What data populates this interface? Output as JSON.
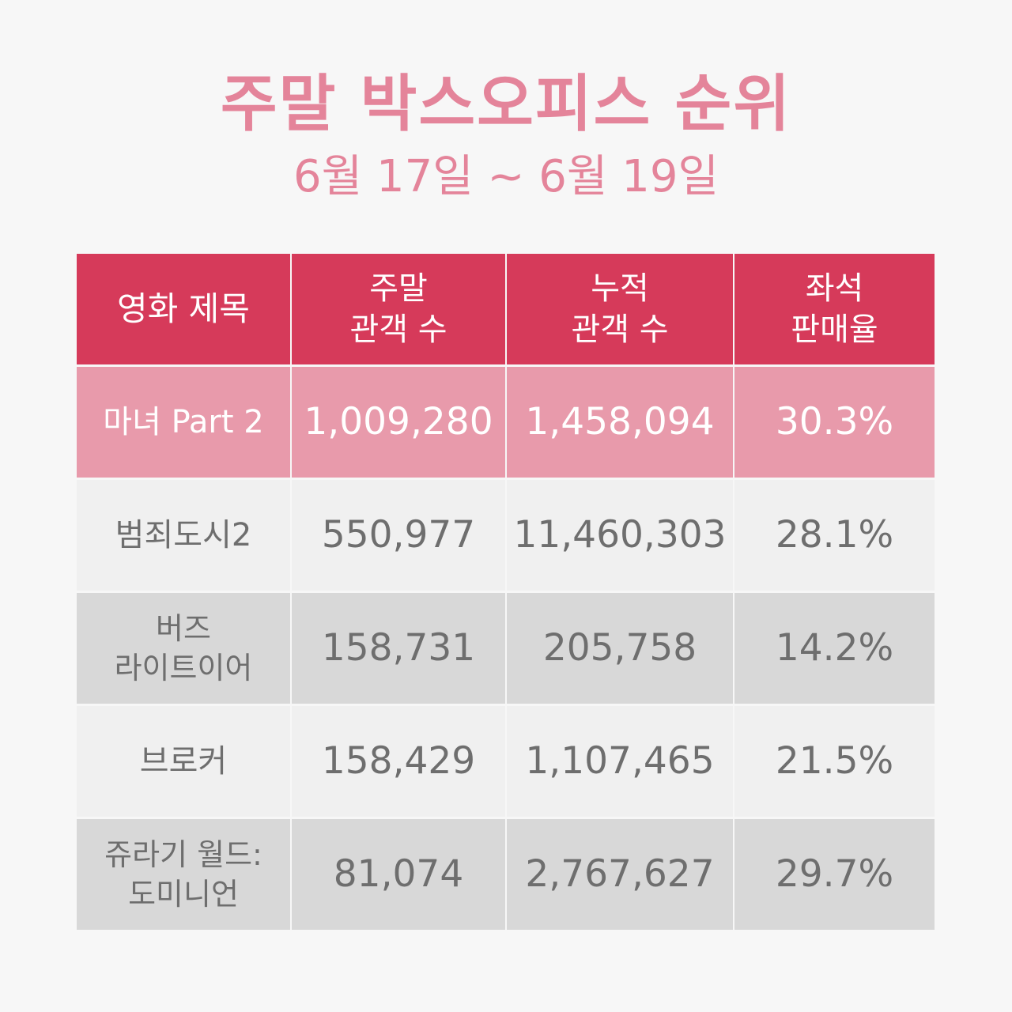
{
  "page": {
    "title": "주말 박스오피스 순위",
    "subtitle": "6월 17일 ~ 6월 19일"
  },
  "colors": {
    "title": "#e4849a",
    "header_bg": "#d63a5a",
    "header_text": "#ffffff",
    "highlight_bg": "#e89aab",
    "highlight_text": "#ffffff",
    "light_row_bg": "#f0f0f0",
    "dark_row_bg": "#d8d8d8",
    "row_text": "#6e6e6e",
    "page_bg": "#f7f7f7"
  },
  "table": {
    "headers": [
      "영화 제목",
      "주말\n관객 수",
      "누적\n관객 수",
      "좌석\n판매율"
    ],
    "rows": [
      {
        "title": "마녀 Part 2",
        "weekend_audience": "1,009,280",
        "total_audience": "1,458,094",
        "seat_sales_rate": "30.3%"
      },
      {
        "title": "범죄도시2",
        "weekend_audience": "550,977",
        "total_audience": "11,460,303",
        "seat_sales_rate": "28.1%"
      },
      {
        "title": "버즈\n라이트이어",
        "weekend_audience": "158,731",
        "total_audience": "205,758",
        "seat_sales_rate": "14.2%"
      },
      {
        "title": "브로커",
        "weekend_audience": "158,429",
        "total_audience": "1,107,465",
        "seat_sales_rate": "21.5%"
      },
      {
        "title": "쥬라기 월드:\n도미니언",
        "weekend_audience": "81,074",
        "total_audience": "2,767,627",
        "seat_sales_rate": "29.7%"
      }
    ]
  }
}
